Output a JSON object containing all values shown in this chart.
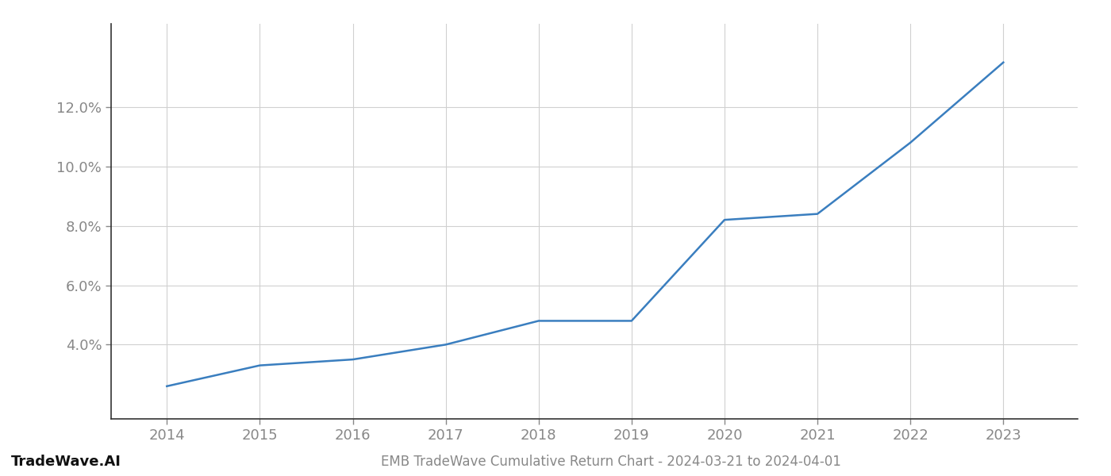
{
  "x_years": [
    2014,
    2015,
    2016,
    2017,
    2018,
    2019,
    2020,
    2021,
    2022,
    2023
  ],
  "y_values": [
    0.026,
    0.033,
    0.035,
    0.04,
    0.048,
    0.048,
    0.082,
    0.084,
    0.108,
    0.135
  ],
  "line_color": "#3a7ebf",
  "line_width": 1.8,
  "title": "EMB TradeWave Cumulative Return Chart - 2024-03-21 to 2024-04-01",
  "watermark": "TradeWave.AI",
  "background_color": "#ffffff",
  "grid_color": "#d0d0d0",
  "tick_label_color": "#888888",
  "ylim": [
    0.015,
    0.148
  ],
  "yticks": [
    0.04,
    0.06,
    0.08,
    0.1,
    0.12
  ],
  "xlim": [
    2013.4,
    2023.8
  ]
}
